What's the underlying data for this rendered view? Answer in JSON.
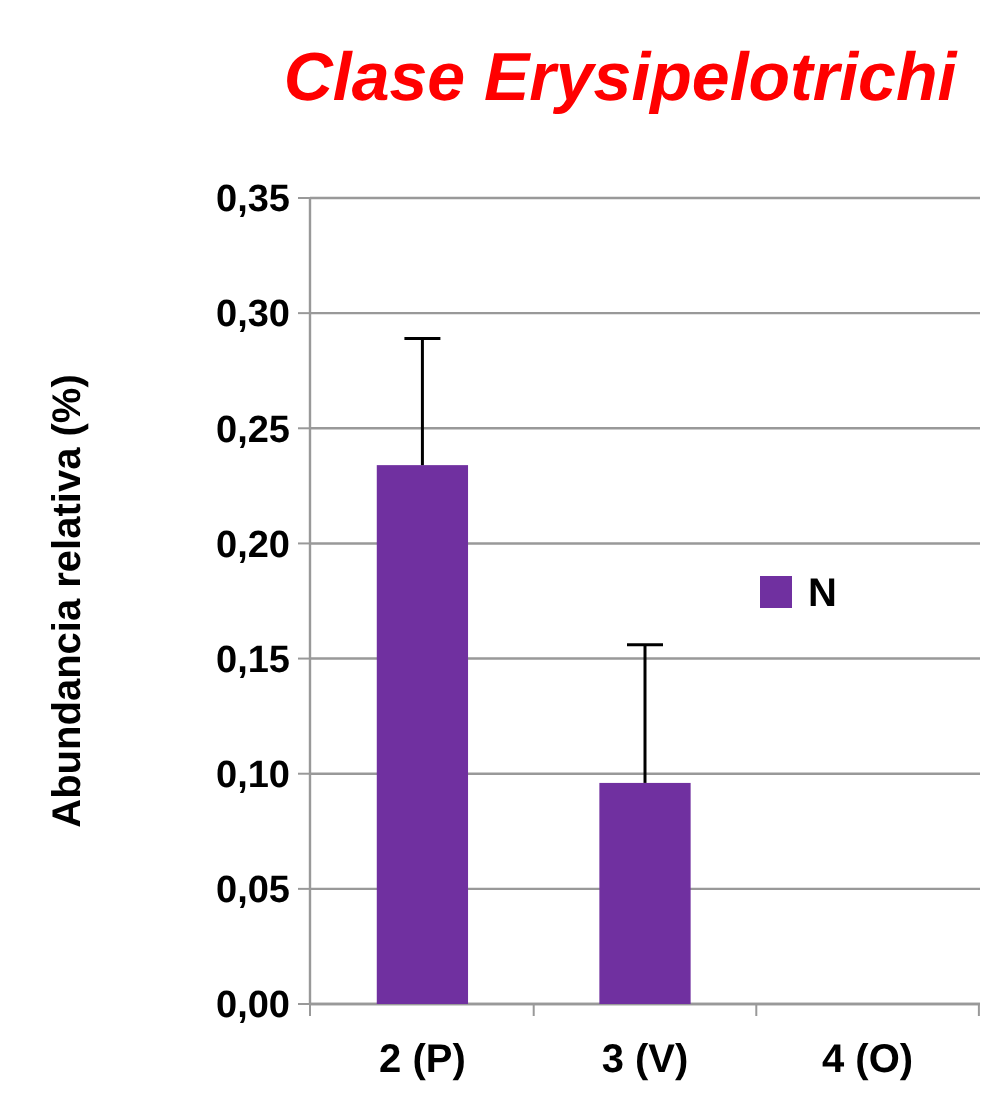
{
  "chart_data": {
    "type": "bar",
    "title": "Clase Erysipelotrichi",
    "ylabel": "Abundancia relativa (%)",
    "categories": [
      "2 (P)",
      "3 (V)",
      "4 (O)"
    ],
    "series": [
      {
        "name": "N",
        "color": "#7030a0",
        "values": [
          0.234,
          0.096,
          0
        ],
        "errors": [
          [
            0.234,
            0.289
          ],
          [
            0.096,
            0.156
          ],
          null
        ]
      }
    ],
    "ylim": [
      0,
      0.35
    ],
    "yticks": [
      {
        "value": 0,
        "label": "0,00"
      },
      {
        "value": 0.05,
        "label": "0,05"
      },
      {
        "value": 0.1,
        "label": "0,10"
      },
      {
        "value": 0.15,
        "label": "0,15"
      },
      {
        "value": 0.2,
        "label": "0,20"
      },
      {
        "value": 0.25,
        "label": "0,25"
      },
      {
        "value": 0.3,
        "label": "0,30"
      },
      {
        "value": 0.35,
        "label": "0,35"
      }
    ],
    "grid": "y",
    "legend": "right"
  }
}
